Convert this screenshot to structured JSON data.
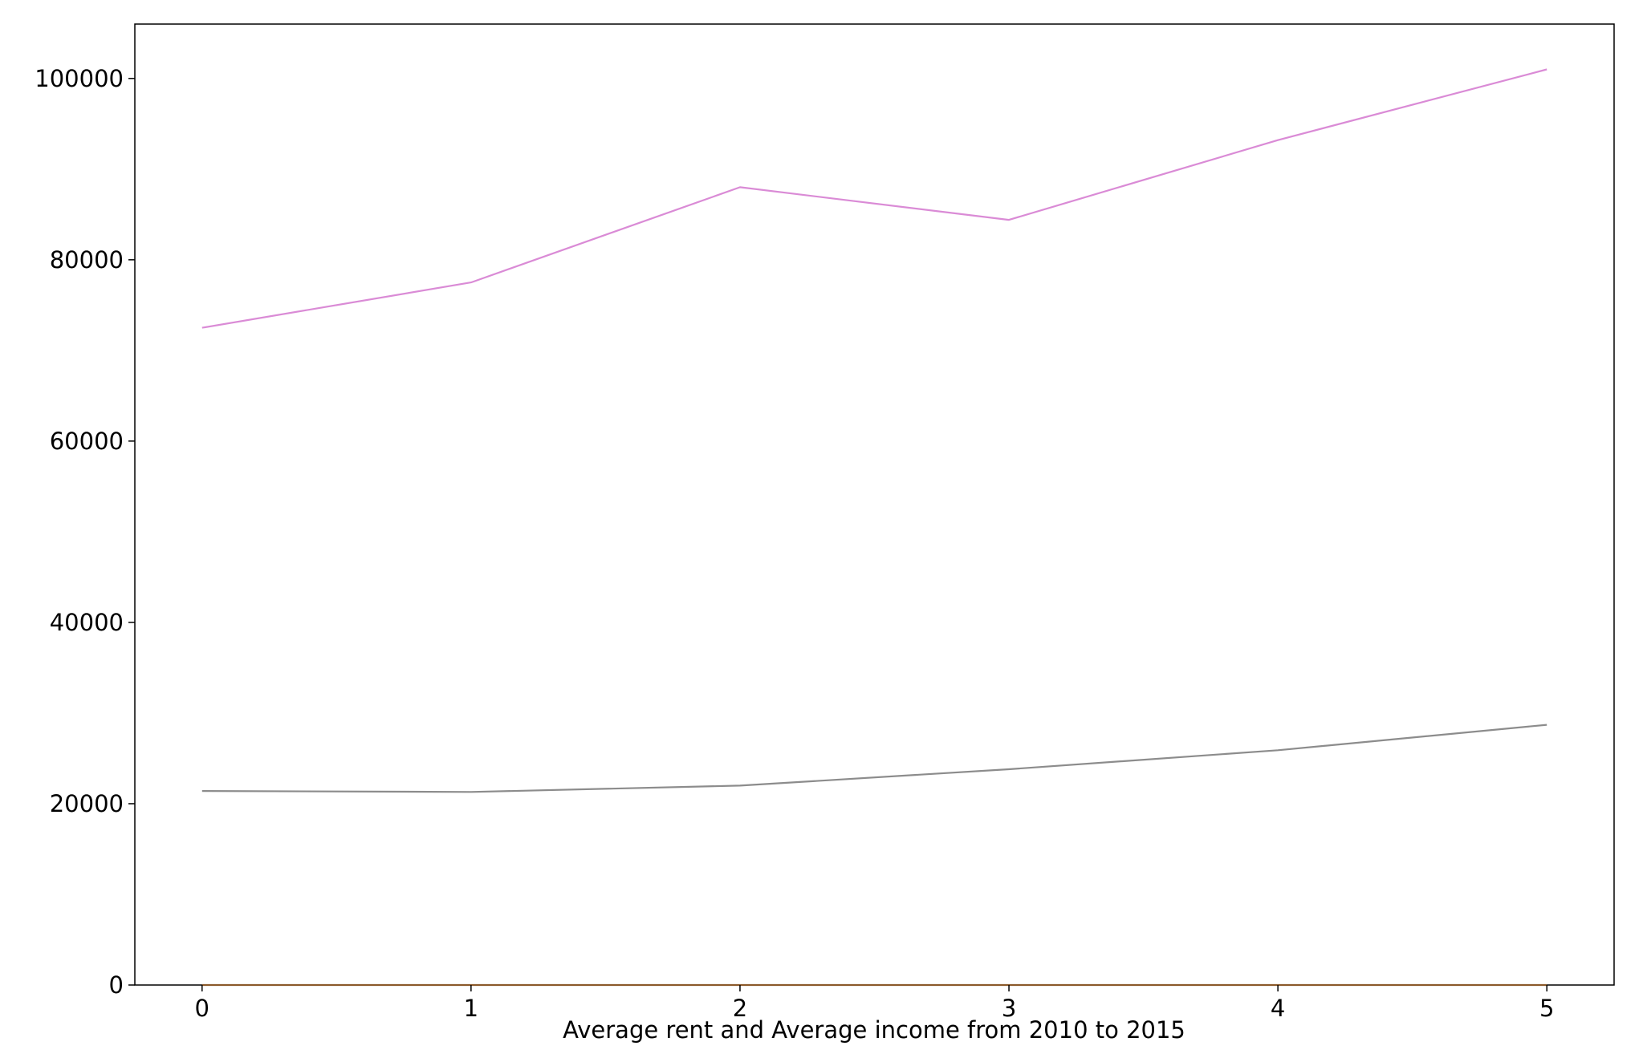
{
  "chart_data": {
    "type": "line",
    "title": "",
    "xlabel": "Average rent and Average income from 2010 to 2015",
    "ylabel": "",
    "x": [
      0,
      1,
      2,
      3,
      4,
      5
    ],
    "xticks": [
      "0",
      "1",
      "2",
      "3",
      "4",
      "5"
    ],
    "yticks": [
      "0",
      "20000",
      "40000",
      "60000",
      "80000",
      "100000"
    ],
    "xlim": [
      -0.25,
      5.25
    ],
    "ylim": [
      0,
      106000
    ],
    "grid": false,
    "legend": "none",
    "series": [
      {
        "values": [
          72500,
          77500,
          88000,
          84400,
          93200,
          101000
        ],
        "color": "#da8bd6"
      },
      {
        "values": [
          21400,
          21300,
          22000,
          23800,
          25900,
          28700
        ],
        "color": "#8c8c8c"
      },
      {
        "values": [
          0,
          0,
          0,
          0,
          0,
          0
        ],
        "color": "#8b5a2b"
      }
    ]
  }
}
